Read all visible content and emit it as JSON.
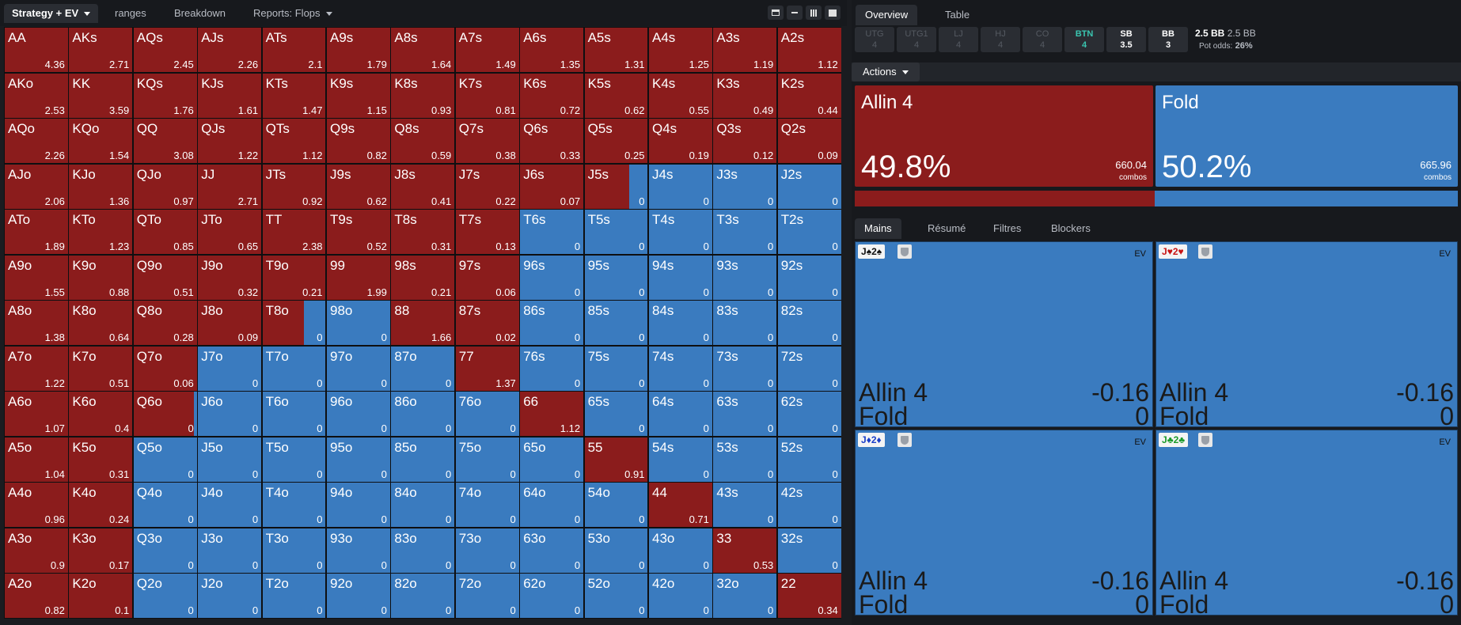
{
  "left": {
    "tabs": [
      {
        "label": "Strategy + EV",
        "active": true,
        "dropdown": true
      },
      {
        "label": "ranges"
      },
      {
        "label": "Breakdown"
      },
      {
        "label": "Reports: Flops",
        "dropdown": true
      }
    ],
    "view_buttons": [
      "layout-split-icon",
      "expand-icon",
      "grid-icon",
      "square-icon"
    ]
  },
  "colors": {
    "allin": "#8b1c1c",
    "fold": "#3a7bbf",
    "btn_seat": "#3ac5b0"
  },
  "grid": {
    "hands": [
      [
        "AA",
        "AKs",
        "AQs",
        "AJs",
        "ATs",
        "A9s",
        "A8s",
        "A7s",
        "A6s",
        "A5s",
        "A4s",
        "A3s",
        "A2s"
      ],
      [
        "AKo",
        "KK",
        "KQs",
        "KJs",
        "KTs",
        "K9s",
        "K8s",
        "K7s",
        "K6s",
        "K5s",
        "K4s",
        "K3s",
        "K2s"
      ],
      [
        "AQo",
        "KQo",
        "QQ",
        "QJs",
        "QTs",
        "Q9s",
        "Q8s",
        "Q7s",
        "Q6s",
        "Q5s",
        "Q4s",
        "Q3s",
        "Q2s"
      ],
      [
        "AJo",
        "KJo",
        "QJo",
        "JJ",
        "JTs",
        "J9s",
        "J8s",
        "J7s",
        "J6s",
        "J5s",
        "J4s",
        "J3s",
        "J2s"
      ],
      [
        "ATo",
        "KTo",
        "QTo",
        "JTo",
        "TT",
        "T9s",
        "T8s",
        "T7s",
        "T6s",
        "T5s",
        "T4s",
        "T3s",
        "T2s"
      ],
      [
        "A9o",
        "K9o",
        "Q9o",
        "J9o",
        "T9o",
        "99",
        "98s",
        "97s",
        "96s",
        "95s",
        "94s",
        "93s",
        "92s"
      ],
      [
        "A8o",
        "K8o",
        "Q8o",
        "J8o",
        "T8o",
        "98o",
        "88",
        "87s",
        "86s",
        "85s",
        "84s",
        "83s",
        "82s"
      ],
      [
        "A7o",
        "K7o",
        "Q7o",
        "J7o",
        "T7o",
        "97o",
        "87o",
        "77",
        "76s",
        "75s",
        "74s",
        "73s",
        "72s"
      ],
      [
        "A6o",
        "K6o",
        "Q6o",
        "J6o",
        "T6o",
        "96o",
        "86o",
        "76o",
        "66",
        "65s",
        "64s",
        "63s",
        "62s"
      ],
      [
        "A5o",
        "K5o",
        "Q5o",
        "J5o",
        "T5o",
        "95o",
        "85o",
        "75o",
        "65o",
        "55",
        "54s",
        "53s",
        "52s"
      ],
      [
        "A4o",
        "K4o",
        "Q4o",
        "J4o",
        "T4o",
        "94o",
        "84o",
        "74o",
        "64o",
        "54o",
        "44",
        "43s",
        "42s"
      ],
      [
        "A3o",
        "K3o",
        "Q3o",
        "J3o",
        "T3o",
        "93o",
        "83o",
        "73o",
        "63o",
        "53o",
        "43o",
        "33",
        "32s"
      ],
      [
        "A2o",
        "K2o",
        "Q2o",
        "J2o",
        "T2o",
        "92o",
        "82o",
        "72o",
        "62o",
        "52o",
        "42o",
        "32o",
        "22"
      ]
    ],
    "ev": [
      [
        "4.36",
        "2.71",
        "2.45",
        "2.26",
        "2.1",
        "1.79",
        "1.64",
        "1.49",
        "1.35",
        "1.31",
        "1.25",
        "1.19",
        "1.12"
      ],
      [
        "2.53",
        "3.59",
        "1.76",
        "1.61",
        "1.47",
        "1.15",
        "0.93",
        "0.81",
        "0.72",
        "0.62",
        "0.55",
        "0.49",
        "0.44"
      ],
      [
        "2.26",
        "1.54",
        "3.08",
        "1.22",
        "1.12",
        "0.82",
        "0.59",
        "0.38",
        "0.33",
        "0.25",
        "0.19",
        "0.12",
        "0.09"
      ],
      [
        "2.06",
        "1.36",
        "0.97",
        "2.71",
        "0.92",
        "0.62",
        "0.41",
        "0.22",
        "0.07",
        "0",
        "0",
        "0",
        "0"
      ],
      [
        "1.89",
        "1.23",
        "0.85",
        "0.65",
        "2.38",
        "0.52",
        "0.31",
        "0.13",
        "0",
        "0",
        "0",
        "0",
        "0"
      ],
      [
        "1.55",
        "0.88",
        "0.51",
        "0.32",
        "0.21",
        "1.99",
        "0.21",
        "0.06",
        "0",
        "0",
        "0",
        "0",
        "0"
      ],
      [
        "1.38",
        "0.64",
        "0.28",
        "0.09",
        "0",
        "0",
        "1.66",
        "0.02",
        "0",
        "0",
        "0",
        "0",
        "0"
      ],
      [
        "1.22",
        "0.51",
        "0.06",
        "0",
        "0",
        "0",
        "0",
        "1.37",
        "0",
        "0",
        "0",
        "0",
        "0"
      ],
      [
        "1.07",
        "0.4",
        "0",
        "0",
        "0",
        "0",
        "0",
        "0",
        "1.12",
        "0",
        "0",
        "0",
        "0"
      ],
      [
        "1.04",
        "0.31",
        "0",
        "0",
        "0",
        "0",
        "0",
        "0",
        "0",
        "0.91",
        "0",
        "0",
        "0"
      ],
      [
        "0.96",
        "0.24",
        "0",
        "0",
        "0",
        "0",
        "0",
        "0",
        "0",
        "0",
        "0.71",
        "0",
        "0"
      ],
      [
        "0.9",
        "0.17",
        "0",
        "0",
        "0",
        "0",
        "0",
        "0",
        "0",
        "0",
        "0",
        "0.53",
        "0"
      ],
      [
        "0.82",
        "0.1",
        "0",
        "0",
        "0",
        "0",
        "0",
        "0",
        "0",
        "0",
        "0",
        "0",
        "0.34"
      ]
    ],
    "allin_freq": [
      [
        1,
        1,
        1,
        1,
        1,
        1,
        1,
        1,
        1,
        1,
        1,
        1,
        1
      ],
      [
        1,
        1,
        1,
        1,
        1,
        1,
        1,
        1,
        1,
        1,
        1,
        1,
        1
      ],
      [
        1,
        1,
        1,
        1,
        1,
        1,
        1,
        1,
        1,
        1,
        1,
        1,
        1
      ],
      [
        1,
        1,
        1,
        1,
        1,
        1,
        1,
        1,
        1,
        0.7,
        0,
        0,
        0
      ],
      [
        1,
        1,
        1,
        1,
        1,
        1,
        1,
        1,
        0,
        0,
        0,
        0,
        0
      ],
      [
        1,
        1,
        1,
        1,
        1,
        1,
        1,
        1,
        0,
        0,
        0,
        0,
        0
      ],
      [
        1,
        1,
        1,
        1,
        0.65,
        0,
        1,
        1,
        0,
        0,
        0,
        0,
        0
      ],
      [
        1,
        1,
        1,
        0,
        0,
        0,
        0,
        1,
        0,
        0,
        0,
        0,
        0
      ],
      [
        1,
        1,
        0.95,
        0,
        0,
        0,
        0,
        0,
        1,
        0,
        0,
        0,
        0
      ],
      [
        1,
        1,
        0,
        0,
        0,
        0,
        0,
        0,
        0,
        1,
        0,
        0,
        0
      ],
      [
        1,
        1,
        0,
        0,
        0,
        0,
        0,
        0,
        0,
        0,
        1,
        0,
        0
      ],
      [
        1,
        1,
        0,
        0,
        0,
        0,
        0,
        0,
        0,
        0,
        0,
        1,
        0
      ],
      [
        1,
        1,
        0,
        0,
        0,
        0,
        0,
        0,
        0,
        0,
        0,
        0,
        1
      ]
    ]
  },
  "right": {
    "tabs": [
      {
        "label": "Overview",
        "active": true
      },
      {
        "label": "Table"
      }
    ],
    "seats": [
      {
        "name": "UTG",
        "stack": "4",
        "state": "inactive"
      },
      {
        "name": "UTG1",
        "stack": "4",
        "state": "inactive"
      },
      {
        "name": "LJ",
        "stack": "4",
        "state": "inactive"
      },
      {
        "name": "HJ",
        "stack": "4",
        "state": "inactive"
      },
      {
        "name": "CO",
        "stack": "4",
        "state": "inactive"
      },
      {
        "name": "BTN",
        "stack": "4",
        "state": "active"
      },
      {
        "name": "SB",
        "stack": "3.5",
        "state": "live"
      },
      {
        "name": "BB",
        "stack": "3",
        "state": "live"
      }
    ],
    "pot": {
      "bb1": "2.5 BB",
      "bb2": "2.5 BB",
      "odds_label": "Pot odds:",
      "odds": "26%"
    },
    "actions_label": "Actions",
    "actions": [
      {
        "name": "Allin 4",
        "pct": "49.8%",
        "combos": "660.04",
        "combos_label": "combos",
        "freq": 0.498
      },
      {
        "name": "Fold",
        "pct": "50.2%",
        "combos": "665.96",
        "combos_label": "combos",
        "freq": 0.502
      }
    ],
    "lower_tabs": [
      {
        "label": "Mains",
        "active": true
      },
      {
        "label": "Résumé"
      },
      {
        "label": "Filtres"
      },
      {
        "label": "Blockers"
      }
    ],
    "combos": [
      {
        "card1": "J",
        "suit1": "♠",
        "card2": "2",
        "suit2": "♠",
        "suit_color": "#111111",
        "ev_label": "EV",
        "rows": [
          {
            "action": "Allin 4",
            "value": "-0.16"
          },
          {
            "action": "Fold",
            "value": "0"
          }
        ]
      },
      {
        "card1": "J",
        "suit1": "♥",
        "card2": "2",
        "suit2": "♥",
        "suit_color": "#c81414",
        "ev_label": "EV",
        "rows": [
          {
            "action": "Allin 4",
            "value": "-0.16"
          },
          {
            "action": "Fold",
            "value": "0"
          }
        ]
      },
      {
        "card1": "J",
        "suit1": "♦",
        "card2": "2",
        "suit2": "♦",
        "suit_color": "#1a3fc8",
        "ev_label": "EV",
        "rows": [
          {
            "action": "Allin 4",
            "value": "-0.16"
          },
          {
            "action": "Fold",
            "value": "0"
          }
        ]
      },
      {
        "card1": "J",
        "suit1": "♣",
        "card2": "2",
        "suit2": "♣",
        "suit_color": "#1a9a2a",
        "ev_label": "EV",
        "rows": [
          {
            "action": "Allin 4",
            "value": "-0.16"
          },
          {
            "action": "Fold",
            "value": "0"
          }
        ]
      }
    ]
  }
}
